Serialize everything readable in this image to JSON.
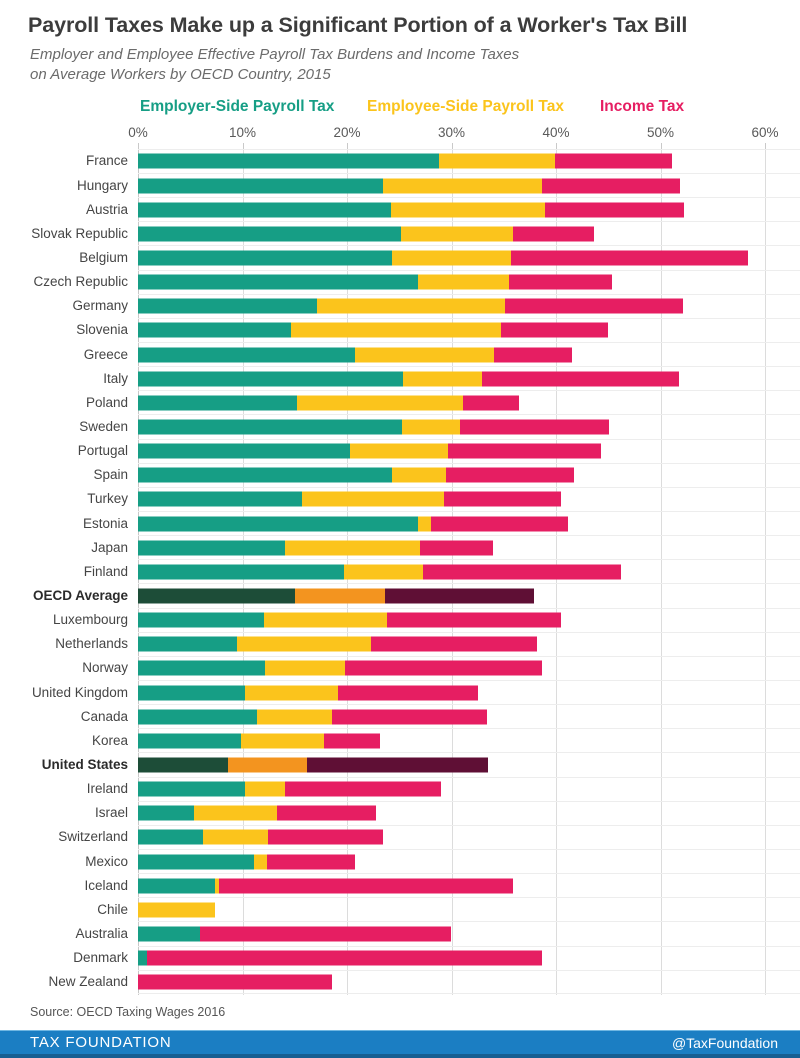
{
  "header": {
    "title": "Payroll Taxes Make up a Significant Portion of a Worker's Tax Bill",
    "subtitle_line1": "Employer and Employee Effective Payroll Tax Burdens and Income Taxes",
    "subtitle_line2": "on Average Workers by OECD Country, 2015"
  },
  "chart_data": {
    "type": "bar",
    "variant": "horizontal-stacked",
    "unit": "percent of labor cost",
    "xlim": [
      0,
      60
    ],
    "x_ticks": [
      "0%",
      "10%",
      "20%",
      "30%",
      "40%",
      "50%",
      "60%"
    ],
    "grid": "vertical",
    "legend_position": "top",
    "series": [
      {
        "key": "employer",
        "label": "Employer-Side Payroll Tax",
        "color": "#169E85",
        "emphasis_color": "#1D4D38"
      },
      {
        "key": "employee",
        "label": "Employee-Side Payroll Tax",
        "color": "#FBC41C",
        "emphasis_color": "#F3941F"
      },
      {
        "key": "income",
        "label": "Income Tax",
        "color": "#E61E62",
        "emphasis_color": "#5F0F35"
      }
    ],
    "rows": [
      {
        "country": "France",
        "employer": 27.3,
        "employee": 10.5,
        "income": 10.6,
        "emphasis": false
      },
      {
        "country": "Hungary",
        "employer": 22.2,
        "employee": 14.4,
        "income": 12.5,
        "emphasis": false
      },
      {
        "country": "Austria",
        "employer": 22.9,
        "employee": 14.0,
        "income": 12.6,
        "emphasis": false
      },
      {
        "country": "Slovak Republic",
        "employer": 23.8,
        "employee": 10.2,
        "income": 7.3,
        "emphasis": false
      },
      {
        "country": "Belgium",
        "employer": 23.0,
        "employee": 10.8,
        "income": 21.5,
        "emphasis": false
      },
      {
        "country": "Czech Republic",
        "employer": 25.4,
        "employee": 8.2,
        "income": 9.4,
        "emphasis": false
      },
      {
        "country": "Germany",
        "employer": 16.2,
        "employee": 17.1,
        "income": 16.1,
        "emphasis": false
      },
      {
        "country": "Slovenia",
        "employer": 13.9,
        "employee": 19.0,
        "income": 9.7,
        "emphasis": false
      },
      {
        "country": "Greece",
        "employer": 19.7,
        "employee": 12.6,
        "income": 7.0,
        "emphasis": false
      },
      {
        "country": "Italy",
        "employer": 24.0,
        "employee": 7.2,
        "income": 17.8,
        "emphasis": false
      },
      {
        "country": "Poland",
        "employer": 14.4,
        "employee": 15.1,
        "income": 5.0,
        "emphasis": false
      },
      {
        "country": "Sweden",
        "employer": 23.9,
        "employee": 5.3,
        "income": 13.5,
        "emphasis": false
      },
      {
        "country": "Portugal",
        "employer": 19.2,
        "employee": 8.9,
        "income": 13.9,
        "emphasis": false
      },
      {
        "country": "Spain",
        "employer": 23.0,
        "employee": 4.9,
        "income": 11.6,
        "emphasis": false
      },
      {
        "country": "Turkey",
        "employer": 14.9,
        "employee": 12.8,
        "income": 10.6,
        "emphasis": false
      },
      {
        "country": "Estonia",
        "employer": 25.4,
        "employee": 1.2,
        "income": 12.4,
        "emphasis": false
      },
      {
        "country": "Japan",
        "employer": 13.3,
        "employee": 12.3,
        "income": 6.6,
        "emphasis": false
      },
      {
        "country": "Finland",
        "employer": 18.7,
        "employee": 7.1,
        "income": 18.0,
        "emphasis": false
      },
      {
        "country": "OECD Average",
        "employer": 14.2,
        "employee": 8.2,
        "income": 13.5,
        "emphasis": true
      },
      {
        "country": "Luxembourg",
        "employer": 11.4,
        "employee": 11.2,
        "income": 15.7,
        "emphasis": false
      },
      {
        "country": "Netherlands",
        "employer": 9.0,
        "employee": 12.1,
        "income": 15.1,
        "emphasis": false
      },
      {
        "country": "Norway",
        "employer": 11.5,
        "employee": 7.3,
        "income": 17.8,
        "emphasis": false
      },
      {
        "country": "United Kingdom",
        "employer": 9.7,
        "employee": 8.4,
        "income": 12.7,
        "emphasis": false
      },
      {
        "country": "Canada",
        "employer": 10.8,
        "employee": 6.8,
        "income": 14.0,
        "emphasis": false
      },
      {
        "country": "Korea",
        "employer": 9.3,
        "employee": 7.6,
        "income": 5.0,
        "emphasis": false
      },
      {
        "country": "United States",
        "employer": 8.2,
        "employee": 7.1,
        "income": 16.4,
        "emphasis": true
      },
      {
        "country": "Ireland",
        "employer": 9.7,
        "employee": 3.6,
        "income": 14.2,
        "emphasis": false
      },
      {
        "country": "Israel",
        "employer": 5.1,
        "employee": 7.5,
        "income": 9.0,
        "emphasis": false
      },
      {
        "country": "Switzerland",
        "employer": 5.9,
        "employee": 5.9,
        "income": 10.4,
        "emphasis": false
      },
      {
        "country": "Mexico",
        "employer": 10.5,
        "employee": 1.2,
        "income": 8.0,
        "emphasis": false
      },
      {
        "country": "Iceland",
        "employer": 7.0,
        "employee": 0.3,
        "income": 26.7,
        "emphasis": false
      },
      {
        "country": "Chile",
        "employer": 0.0,
        "employee": 7.0,
        "income": 0.0,
        "emphasis": false
      },
      {
        "country": "Australia",
        "employer": 5.6,
        "employee": 0.0,
        "income": 22.8,
        "emphasis": false
      },
      {
        "country": "Denmark",
        "employer": 0.8,
        "employee": 0.0,
        "income": 35.8,
        "emphasis": false
      },
      {
        "country": "New Zealand",
        "employer": 0.0,
        "employee": 0.0,
        "income": 17.6,
        "emphasis": false
      }
    ]
  },
  "source": "Source: OECD Taxing Wages 2016",
  "footer": {
    "brand": "TAX FOUNDATION",
    "handle": "@TaxFoundation",
    "bar_color": "#1B7EC3",
    "bar_accent": "#175E92"
  }
}
